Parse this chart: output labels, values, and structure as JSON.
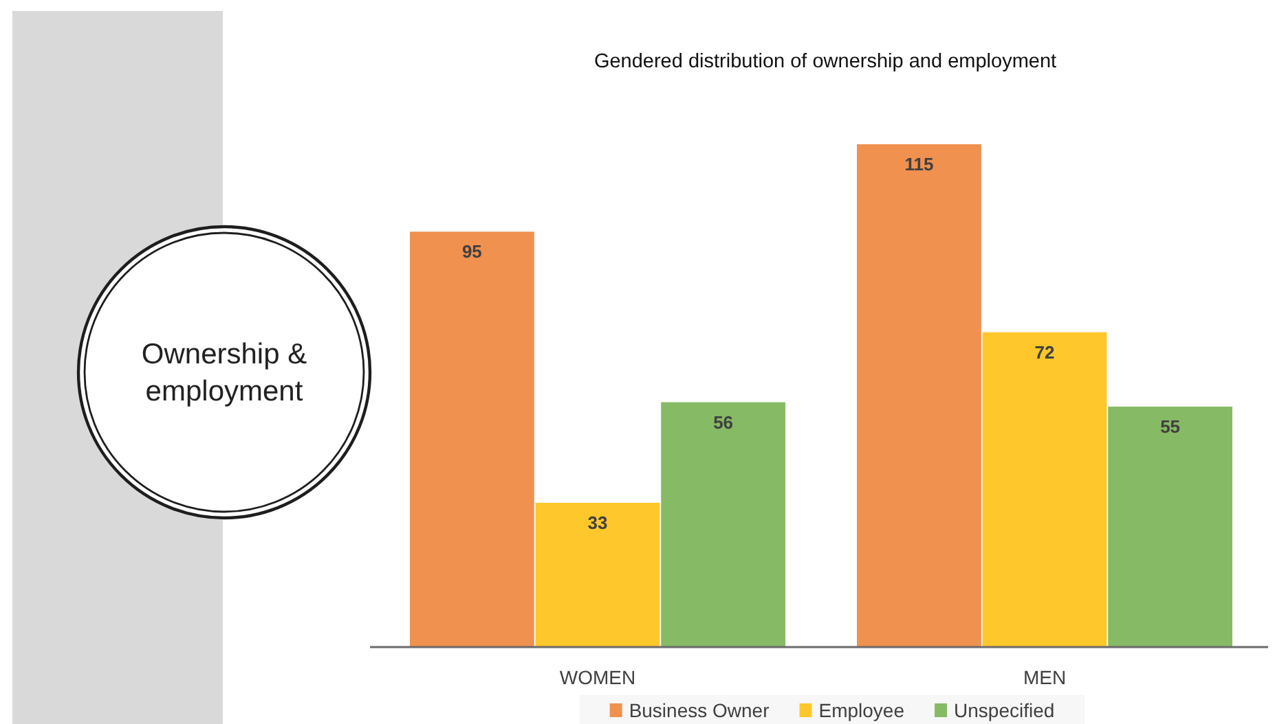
{
  "chart_data": {
    "type": "bar",
    "title": "Gendered distribution of ownership and employment",
    "categories": [
      "WOMEN",
      "MEN"
    ],
    "series": [
      {
        "name": "Business Owner",
        "color": "#f0914f",
        "values": [
          95,
          115
        ]
      },
      {
        "name": "Employee",
        "color": "#fec72b",
        "values": [
          33,
          72
        ]
      },
      {
        "name": "Unspecified",
        "color": "#86ba65",
        "values": [
          56,
          55
        ]
      }
    ],
    "data_labels": true,
    "legend": "bottom",
    "annotations": [
      "Ownership & employment"
    ]
  }
}
